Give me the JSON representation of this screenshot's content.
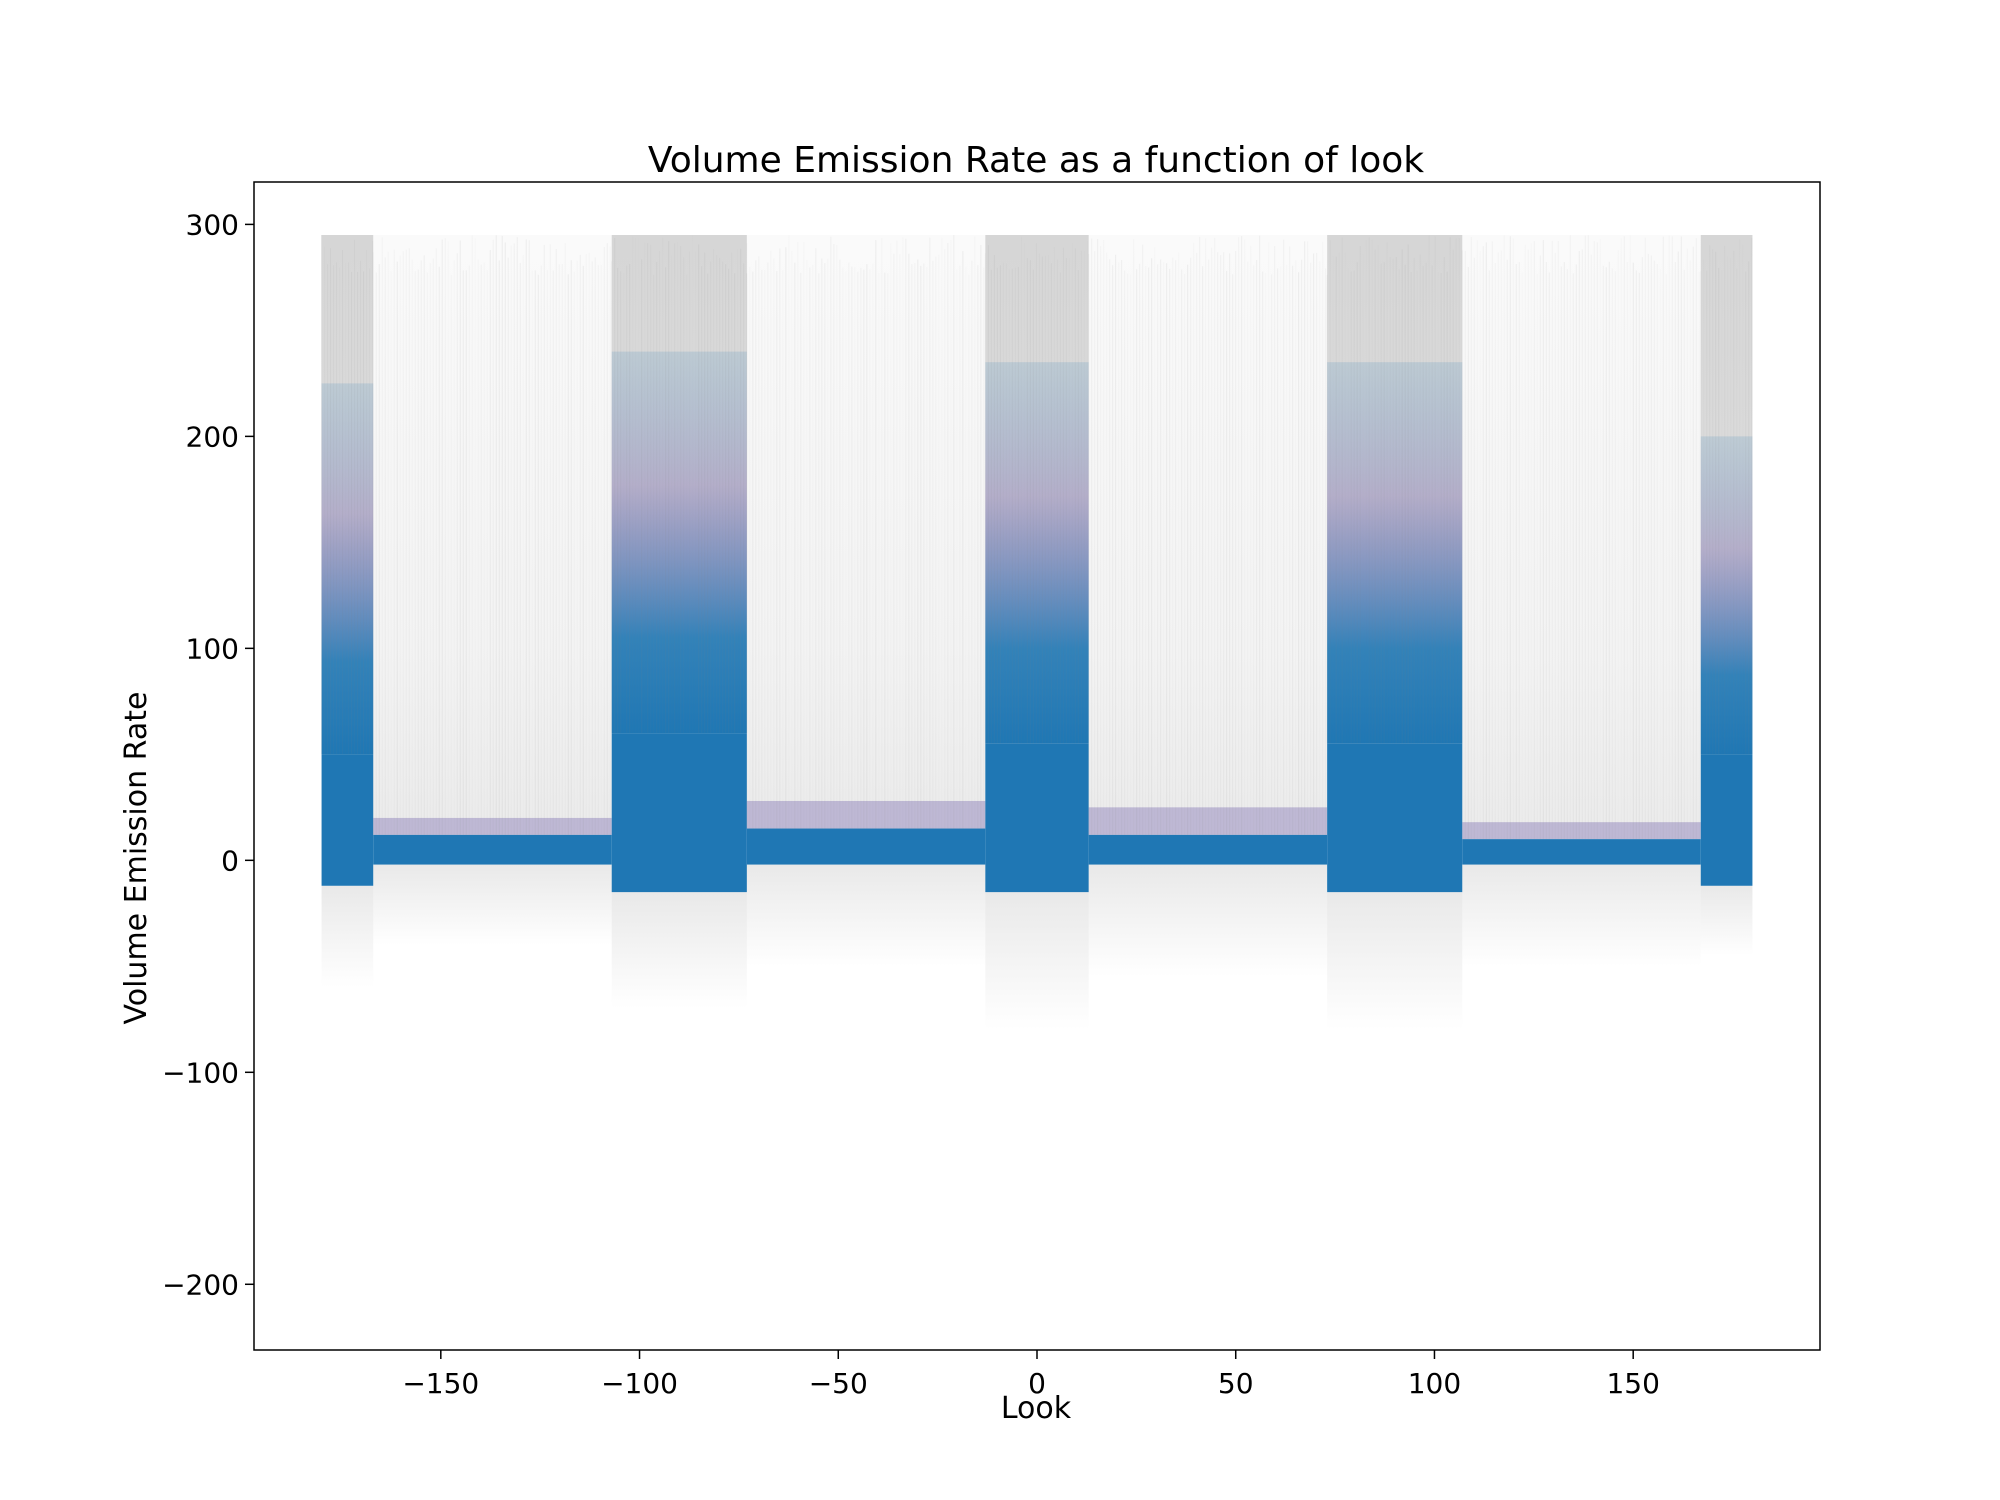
{
  "chart_data": {
    "type": "scatter",
    "title": "Volume Emission Rate as a function of look",
    "xlabel": "Look",
    "ylabel": "Volume Emission Rate",
    "xlim": [
      -197,
      197
    ],
    "ylim": [
      -231,
      320
    ],
    "x_ticks": [
      -150,
      -100,
      -50,
      0,
      50,
      100,
      150
    ],
    "x_tick_labels": [
      "−150",
      "−100",
      "−50",
      "0",
      "50",
      "100",
      "150"
    ],
    "y_ticks": [
      -200,
      -100,
      0,
      100,
      200,
      300
    ],
    "y_tick_labels": [
      "−200",
      "−100",
      "0",
      "100",
      "200",
      "300"
    ],
    "grid": false,
    "colors": {
      "dense": "#1f77b4",
      "mid": "#6a5aa8",
      "haze": "#9a9a9a"
    },
    "series": [
      {
        "bands": [
          {
            "x": [
              -180,
              -167
            ],
            "y_low": -12,
            "y_high": 50,
            "mid_high": 225,
            "haze_low": -60,
            "haze_high": 295,
            "dense": true
          },
          {
            "x": [
              -167,
              -107
            ],
            "y_low": -2,
            "y_high": 12,
            "mid_high": 20,
            "haze_low": -40,
            "haze_high": 295,
            "dense": false
          },
          {
            "x": [
              -107,
              -73
            ],
            "y_low": -15,
            "y_high": 60,
            "mid_high": 240,
            "haze_low": -70,
            "haze_high": 295,
            "dense": true
          },
          {
            "x": [
              -73,
              -13
            ],
            "y_low": -2,
            "y_high": 15,
            "mid_high": 28,
            "haze_low": -50,
            "haze_high": 295,
            "dense": false
          },
          {
            "x": [
              -13,
              13
            ],
            "y_low": -15,
            "y_high": 55,
            "mid_high": 235,
            "haze_low": -80,
            "haze_high": 295,
            "dense": true
          },
          {
            "x": [
              13,
              73
            ],
            "y_low": -2,
            "y_high": 12,
            "mid_high": 25,
            "haze_low": -55,
            "haze_high": 295,
            "dense": false
          },
          {
            "x": [
              73,
              107
            ],
            "y_low": -15,
            "y_high": 55,
            "mid_high": 235,
            "haze_low": -80,
            "haze_high": 295,
            "dense": true
          },
          {
            "x": [
              107,
              167
            ],
            "y_low": -2,
            "y_high": 10,
            "mid_high": 18,
            "haze_low": -50,
            "haze_high": 295,
            "dense": false
          },
          {
            "x": [
              167,
              180
            ],
            "y_low": -12,
            "y_high": 50,
            "mid_high": 200,
            "haze_low": -45,
            "haze_high": 295,
            "dense": true
          }
        ]
      }
    ]
  }
}
